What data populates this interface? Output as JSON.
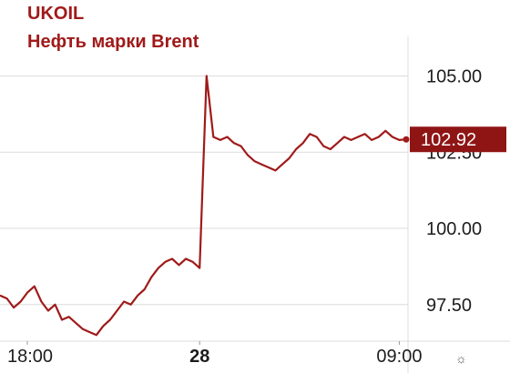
{
  "header": {
    "symbol": "UKOIL",
    "name": "Нефть марки Brent"
  },
  "current_price_label": "102.92",
  "colors": {
    "line": "#a01a1a",
    "accent": "#8f1515",
    "grid": "#dcdcdc",
    "text": "#1d1d1d"
  },
  "settings_icon": "gear-icon",
  "chart_data": {
    "type": "line",
    "title": "Нефть марки Brent",
    "xlabel": "",
    "ylabel": "",
    "ylim": [
      96.3,
      106.3
    ],
    "y_ticks": [
      "105.00",
      "102.50",
      "100.00",
      "97.50"
    ],
    "x_tick_labels": [
      "18:00",
      "28",
      "09:00"
    ],
    "x_tick_index": [
      0,
      29,
      58
    ],
    "grid": true,
    "last_value": 102.92,
    "series": [
      {
        "values": [
          97.8,
          97.7,
          97.4,
          97.6,
          97.9,
          98.1,
          97.6,
          97.3,
          97.5,
          97.0,
          97.1,
          96.9,
          96.7,
          96.6,
          96.5,
          96.8,
          97.0,
          97.3,
          97.6,
          97.5,
          97.8,
          98.0,
          98.4,
          98.7,
          98.9,
          99.0,
          98.8,
          99.0,
          98.9,
          98.7,
          105.0,
          103.0,
          102.9,
          103.0,
          102.8,
          102.7,
          102.4,
          102.2,
          102.1,
          102.0,
          101.9,
          102.1,
          102.3,
          102.6,
          102.8,
          103.1,
          103.0,
          102.7,
          102.6,
          102.8,
          103.0,
          102.9,
          103.0,
          103.1,
          102.9,
          103.0,
          103.2,
          103.0,
          102.9,
          102.92
        ]
      }
    ]
  }
}
